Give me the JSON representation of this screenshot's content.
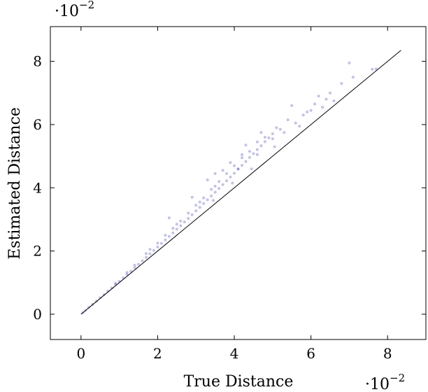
{
  "chart_data": {
    "type": "scatter",
    "title": "",
    "xlabel": "True Distance",
    "ylabel": "Estimated Distance",
    "x_multiplier": {
      "base": "·10",
      "exponent": "−2"
    },
    "y_multiplier": {
      "base": "·10",
      "exponent": "−2"
    },
    "xlim": [
      -0.8,
      9.0
    ],
    "ylim": [
      -0.8,
      9.1
    ],
    "x_ticks": [
      0,
      2,
      4,
      6,
      8
    ],
    "y_ticks": [
      0,
      2,
      4,
      6,
      8
    ],
    "x_tick_labels": [
      "0",
      "2",
      "4",
      "6",
      "8"
    ],
    "y_tick_labels": [
      "0",
      "2",
      "4",
      "6",
      "8"
    ],
    "grid": false,
    "marker_color": "#3333cc",
    "reference_line": {
      "from": [
        0,
        0
      ],
      "to": [
        8.35,
        8.35
      ],
      "color": "#000000"
    },
    "points": [
      [
        0.05,
        0.05
      ],
      [
        0.12,
        0.12
      ],
      [
        0.2,
        0.21
      ],
      [
        0.3,
        0.31
      ],
      [
        0.4,
        0.41
      ],
      [
        0.5,
        0.52
      ],
      [
        0.6,
        0.62
      ],
      [
        0.7,
        0.73
      ],
      [
        0.8,
        0.83
      ],
      [
        0.9,
        0.94
      ],
      [
        1.0,
        1.04
      ],
      [
        1.1,
        1.15
      ],
      [
        1.2,
        1.26
      ],
      [
        1.3,
        1.36
      ],
      [
        1.4,
        1.47
      ],
      [
        1.5,
        1.58
      ],
      [
        1.6,
        1.69
      ],
      [
        1.7,
        1.8
      ],
      [
        1.8,
        1.91
      ],
      [
        1.9,
        2.02
      ],
      [
        2.0,
        2.13
      ],
      [
        2.1,
        2.24
      ],
      [
        2.2,
        2.35
      ],
      [
        2.3,
        2.46
      ],
      [
        2.4,
        2.57
      ],
      [
        2.5,
        2.69
      ],
      [
        2.6,
        2.8
      ],
      [
        2.7,
        2.92
      ],
      [
        2.8,
        3.03
      ],
      [
        2.9,
        3.15
      ],
      [
        3.0,
        3.27
      ],
      [
        3.1,
        3.38
      ],
      [
        3.2,
        3.5
      ],
      [
        3.3,
        3.62
      ],
      [
        3.4,
        3.74
      ],
      [
        3.5,
        3.86
      ],
      [
        3.6,
        3.98
      ],
      [
        3.7,
        4.1
      ],
      [
        3.8,
        4.22
      ],
      [
        3.9,
        4.34
      ],
      [
        4.0,
        4.46
      ],
      [
        4.1,
        4.59
      ],
      [
        4.2,
        4.71
      ],
      [
        4.3,
        4.83
      ],
      [
        4.4,
        4.96
      ],
      [
        4.5,
        5.08
      ],
      [
        4.6,
        5.21
      ],
      [
        4.7,
        5.33
      ],
      [
        4.8,
        5.46
      ],
      [
        4.9,
        5.58
      ],
      [
        5.0,
        5.71
      ],
      [
        0.9,
        0.98
      ],
      [
        1.4,
        1.55
      ],
      [
        1.7,
        1.92
      ],
      [
        2.0,
        2.25
      ],
      [
        2.2,
        2.5
      ],
      [
        2.4,
        2.72
      ],
      [
        2.6,
        2.95
      ],
      [
        2.8,
        3.2
      ],
      [
        3.0,
        3.45
      ],
      [
        3.2,
        3.68
      ],
      [
        3.4,
        3.95
      ],
      [
        3.5,
        4.05
      ],
      [
        3.6,
        4.2
      ],
      [
        3.8,
        4.45
      ],
      [
        4.0,
        4.7
      ],
      [
        4.2,
        4.95
      ],
      [
        4.4,
        5.15
      ],
      [
        4.6,
        5.45
      ],
      [
        2.3,
        3.05
      ],
      [
        2.9,
        3.7
      ],
      [
        3.3,
        4.25
      ],
      [
        3.5,
        4.45
      ],
      [
        3.7,
        4.55
      ],
      [
        3.9,
        4.8
      ],
      [
        4.1,
        4.6
      ],
      [
        4.3,
        5.35
      ],
      [
        4.6,
        5.05
      ],
      [
        4.8,
        5.6
      ],
      [
        5.0,
        5.55
      ],
      [
        5.2,
        5.85
      ],
      [
        5.3,
        5.75
      ],
      [
        5.4,
        6.15
      ],
      [
        5.6,
        6.05
      ],
      [
        5.8,
        6.3
      ],
      [
        5.9,
        6.4
      ],
      [
        6.1,
        6.65
      ],
      [
        6.2,
        6.9
      ],
      [
        6.4,
        6.8
      ],
      [
        6.5,
        7.0
      ],
      [
        6.8,
        7.3
      ],
      [
        7.0,
        7.95
      ],
      [
        7.1,
        7.5
      ],
      [
        7.6,
        7.75
      ],
      [
        7.7,
        7.76
      ],
      [
        4.7,
        5.75
      ],
      [
        5.1,
        5.9
      ],
      [
        5.5,
        6.6
      ],
      [
        5.7,
        5.95
      ],
      [
        6.0,
        6.45
      ],
      [
        4.2,
        5.05
      ],
      [
        3.1,
        3.55
      ],
      [
        2.5,
        2.85
      ],
      [
        1.8,
        2.05
      ],
      [
        1.2,
        1.32
      ],
      [
        6.6,
        6.75
      ],
      [
        6.3,
        6.55
      ],
      [
        5.05,
        5.3
      ],
      [
        4.45,
        4.6
      ],
      [
        3.95,
        4.15
      ],
      [
        3.45,
        3.6
      ]
    ]
  }
}
